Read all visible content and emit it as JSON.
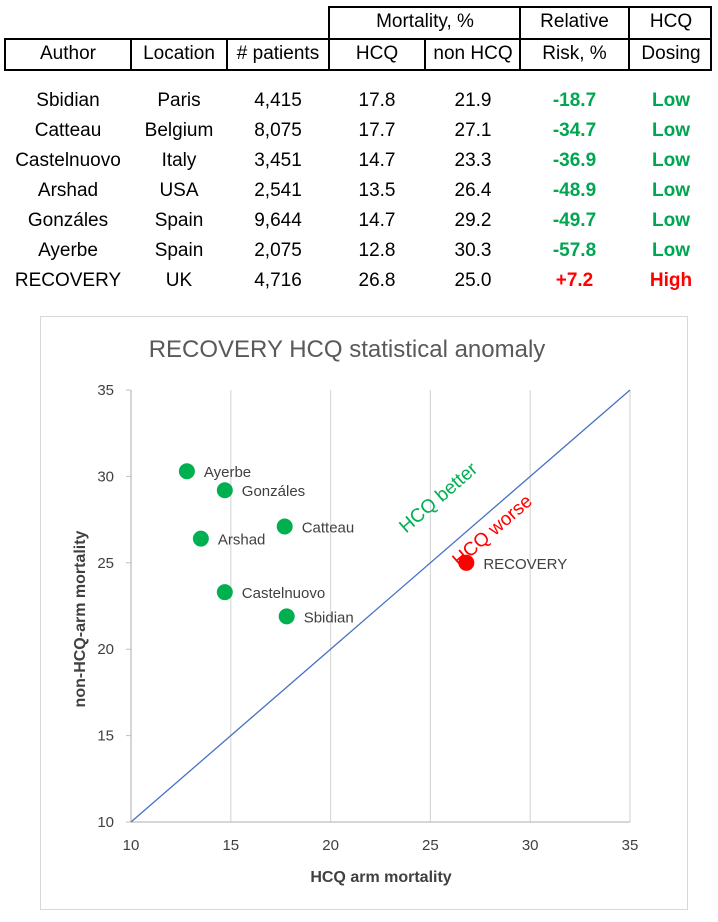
{
  "table": {
    "header_group": {
      "mortality": "Mortality, %",
      "relative_top": "Relative",
      "hcq_top": "HCQ"
    },
    "columns": [
      "Author",
      "Location",
      "# patients",
      "HCQ",
      "non HCQ",
      "Risk, %",
      "Dosing"
    ],
    "rows": [
      {
        "author": "Sbidian",
        "location": "Paris",
        "patients": "4,415",
        "hcq": "17.8",
        "non_hcq": "21.9",
        "rr": "-18.7",
        "dosing": "Low"
      },
      {
        "author": "Catteau",
        "location": "Belgium",
        "patients": "8,075",
        "hcq": "17.7",
        "non_hcq": "27.1",
        "rr": "-34.7",
        "dosing": "Low"
      },
      {
        "author": "Castelnuovo",
        "location": "Italy",
        "patients": "3,451",
        "hcq": "14.7",
        "non_hcq": "23.3",
        "rr": "-36.9",
        "dosing": "Low"
      },
      {
        "author": "Arshad",
        "location": "USA",
        "patients": "2,541",
        "hcq": "13.5",
        "non_hcq": "26.4",
        "rr": "-48.9",
        "dosing": "Low"
      },
      {
        "author": "Gonzáles",
        "location": "Spain",
        "patients": "9,644",
        "hcq": "14.7",
        "non_hcq": "29.2",
        "rr": "-49.7",
        "dosing": "Low"
      },
      {
        "author": "Ayerbe",
        "location": "Spain",
        "patients": "2,075",
        "hcq": "12.8",
        "non_hcq": "30.3",
        "rr": "-57.8",
        "dosing": "Low"
      },
      {
        "author": "RECOVERY",
        "location": "UK",
        "patients": "4,716",
        "hcq": "26.8",
        "non_hcq": "25.0",
        "rr": "+7.2",
        "dosing": "High"
      }
    ],
    "colors": {
      "good": "#00a651",
      "bad": "#ff0000"
    }
  },
  "chart_data": {
    "type": "scatter",
    "title": "RECOVERY HCQ statistical anomaly",
    "xlabel": "HCQ arm mortality",
    "ylabel": "non-HCQ-arm mortality",
    "xlim": [
      10,
      35
    ],
    "ylim": [
      10,
      35
    ],
    "xticks": [
      "10",
      "15",
      "20",
      "25",
      "30",
      "35"
    ],
    "yticks": [
      "10",
      "15",
      "20",
      "25",
      "30",
      "35"
    ],
    "grid": "vertical",
    "reference_line": {
      "from": [
        10,
        10
      ],
      "to": [
        35,
        35
      ],
      "color": "#4472c4"
    },
    "region_labels": [
      {
        "text": "HCQ better",
        "color": "#00b050"
      },
      {
        "text": "HCQ worse",
        "color": "#ff0000"
      }
    ],
    "points": [
      {
        "label": "Sbidian",
        "x": 17.8,
        "y": 21.9,
        "color": "#00b050"
      },
      {
        "label": "Catteau",
        "x": 17.7,
        "y": 27.1,
        "color": "#00b050"
      },
      {
        "label": "Castelnuovo",
        "x": 14.7,
        "y": 23.3,
        "color": "#00b050"
      },
      {
        "label": "Arshad",
        "x": 13.5,
        "y": 26.4,
        "color": "#00b050"
      },
      {
        "label": "Gonzáles",
        "x": 14.7,
        "y": 29.2,
        "color": "#00b050"
      },
      {
        "label": "Ayerbe",
        "x": 12.8,
        "y": 30.3,
        "color": "#00b050"
      },
      {
        "label": "RECOVERY",
        "x": 26.8,
        "y": 25.0,
        "color": "#ff0000"
      }
    ]
  }
}
